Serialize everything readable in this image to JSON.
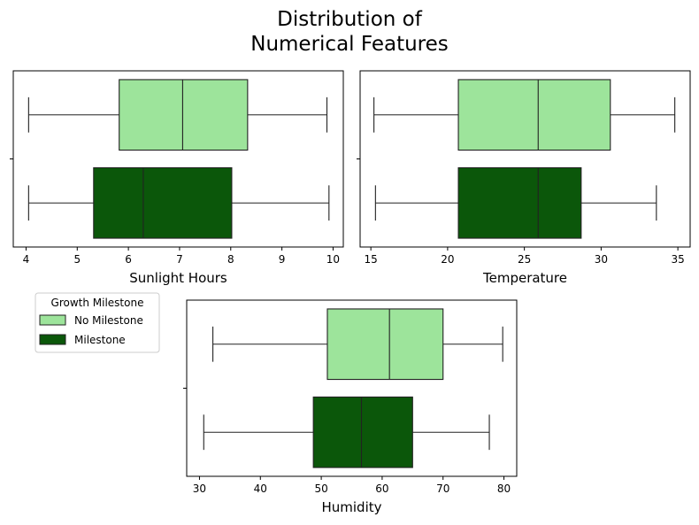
{
  "title_lines": [
    "Distribution of",
    "Numerical Features"
  ],
  "colors": {
    "no_milestone": "#9de49b",
    "milestone": "#0b570a",
    "line": "#222222",
    "frame": "#000000"
  },
  "legend": {
    "title": "Growth Milestone",
    "entries": [
      {
        "label": "No Milestone",
        "color": "#9de49b"
      },
      {
        "label": "Milestone",
        "color": "#0b570a"
      }
    ]
  },
  "chart_data": [
    {
      "type": "box",
      "orientation": "horizontal",
      "xlabel": "Sunlight Hours",
      "xlim": [
        3.75,
        10.2
      ],
      "xticks": [
        4,
        5,
        6,
        7,
        8,
        9,
        10
      ],
      "series": [
        {
          "name": "No Milestone",
          "whislo": 4.05,
          "q1": 5.82,
          "med": 7.06,
          "q3": 8.33,
          "whishi": 9.88
        },
        {
          "name": "Milestone",
          "whislo": 4.05,
          "q1": 5.32,
          "med": 6.29,
          "q3": 8.02,
          "whishi": 9.92
        }
      ]
    },
    {
      "type": "box",
      "orientation": "horizontal",
      "xlabel": "Temperature",
      "xlim": [
        14.3,
        35.8
      ],
      "xticks": [
        15,
        20,
        25,
        30,
        35
      ],
      "series": [
        {
          "name": "No Milestone",
          "whislo": 15.2,
          "q1": 20.7,
          "med": 25.9,
          "q3": 30.6,
          "whishi": 34.8
        },
        {
          "name": "Milestone",
          "whislo": 15.3,
          "q1": 20.7,
          "med": 25.9,
          "q3": 28.7,
          "whishi": 33.6
        }
      ]
    },
    {
      "type": "box",
      "orientation": "horizontal",
      "xlabel": "Humidity",
      "xlim": [
        27.9,
        82.1
      ],
      "xticks": [
        30,
        40,
        50,
        60,
        70,
        80
      ],
      "series": [
        {
          "name": "No Milestone",
          "whislo": 32.2,
          "q1": 51.0,
          "med": 61.2,
          "q3": 70.0,
          "whishi": 79.8
        },
        {
          "name": "Milestone",
          "whislo": 30.7,
          "q1": 48.7,
          "med": 56.6,
          "q3": 65.0,
          "whishi": 77.6
        }
      ]
    }
  ]
}
